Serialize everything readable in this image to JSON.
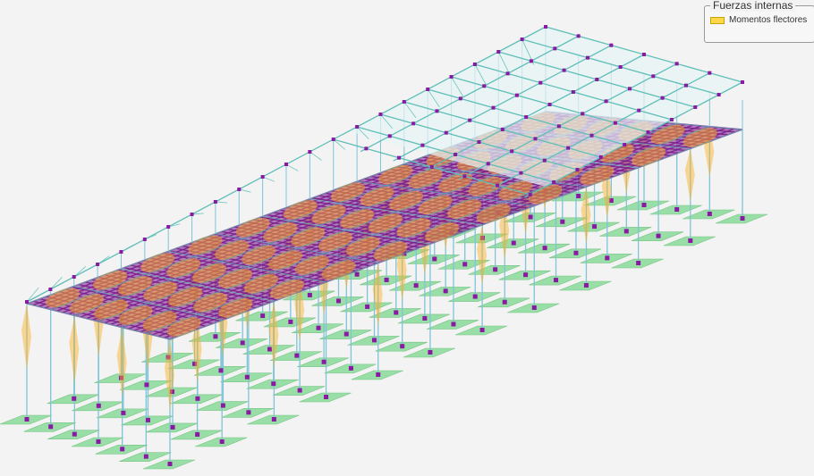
{
  "legend": {
    "title": "Fuerzas internas",
    "items": [
      {
        "label": "Momentos flectores",
        "color": "#ffd84a"
      }
    ]
  },
  "colors": {
    "background": "#f3f3f3",
    "slab_members": "#7a1a8c",
    "slab_nodes": "#8b1aa3",
    "roof_members": "#5fbfb8",
    "column_members": "#7fc4d8",
    "moment_fill": "#ffb020",
    "foundations": "#8fdc9e",
    "roof_panel": "#e6f4f4"
  }
}
